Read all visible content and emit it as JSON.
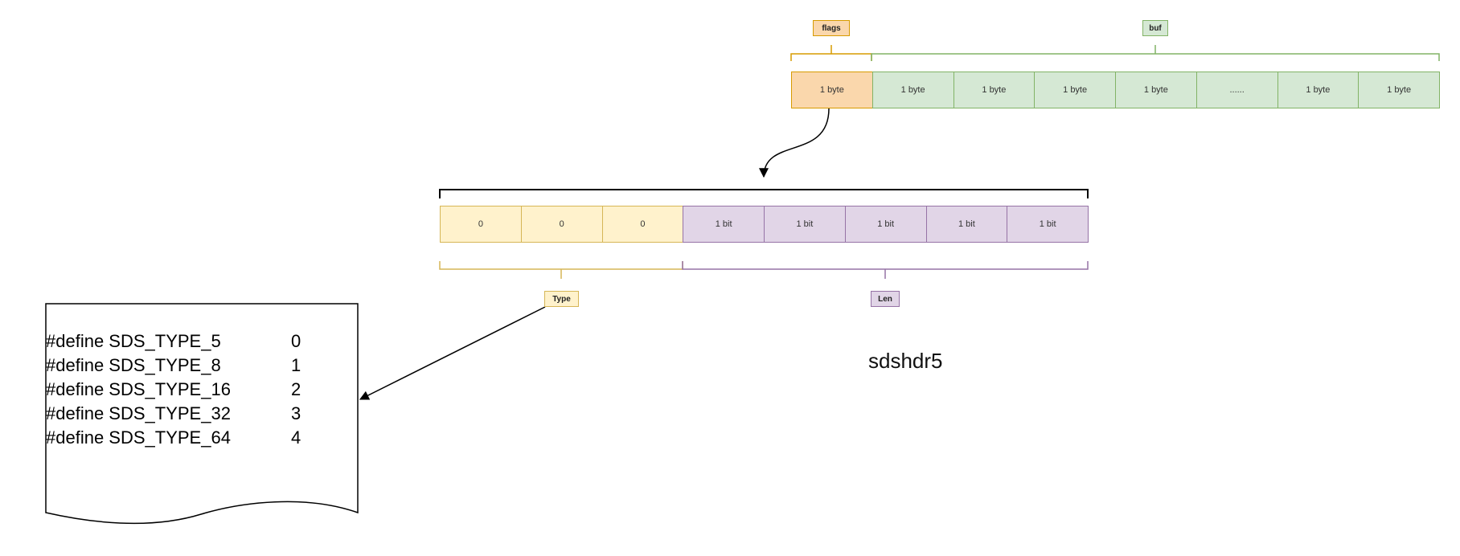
{
  "flags_label": "flags",
  "buf_label": "buf",
  "top_row": [
    {
      "text": "1 byte",
      "color": "orange"
    },
    {
      "text": "1 byte",
      "color": "green"
    },
    {
      "text": "1 byte",
      "color": "green"
    },
    {
      "text": "1 byte",
      "color": "green"
    },
    {
      "text": "1 byte",
      "color": "green"
    },
    {
      "text": "......",
      "color": "green"
    },
    {
      "text": "1 byte",
      "color": "green"
    },
    {
      "text": "1 byte",
      "color": "green"
    }
  ],
  "bits_row": [
    {
      "text": "0",
      "color": "yellow"
    },
    {
      "text": "0",
      "color": "yellow"
    },
    {
      "text": "0",
      "color": "yellow"
    },
    {
      "text": "1 bit",
      "color": "purple"
    },
    {
      "text": "1 bit",
      "color": "purple"
    },
    {
      "text": "1 bit",
      "color": "purple"
    },
    {
      "text": "1 bit",
      "color": "purple"
    },
    {
      "text": "1 bit",
      "color": "purple"
    }
  ],
  "type_label": "Type",
  "len_label": "Len",
  "caption": "sdshdr5",
  "defines": [
    {
      "name": "#define SDS_TYPE_5",
      "value": "0"
    },
    {
      "name": "#define SDS_TYPE_8",
      "value": "1"
    },
    {
      "name": "#define SDS_TYPE_16",
      "value": "2"
    },
    {
      "name": "#define SDS_TYPE_32",
      "value": "3"
    },
    {
      "name": "#define SDS_TYPE_64",
      "value": "4"
    }
  ],
  "colors": {
    "orange_fill": "#fad7ac",
    "orange_stroke": "#d79b00",
    "green_fill": "#d5e8d4",
    "green_stroke": "#82b366",
    "yellow_fill": "#fff2cc",
    "yellow_stroke": "#d6b656",
    "purple_fill": "#e1d5e7",
    "purple_stroke": "#9673a6"
  }
}
